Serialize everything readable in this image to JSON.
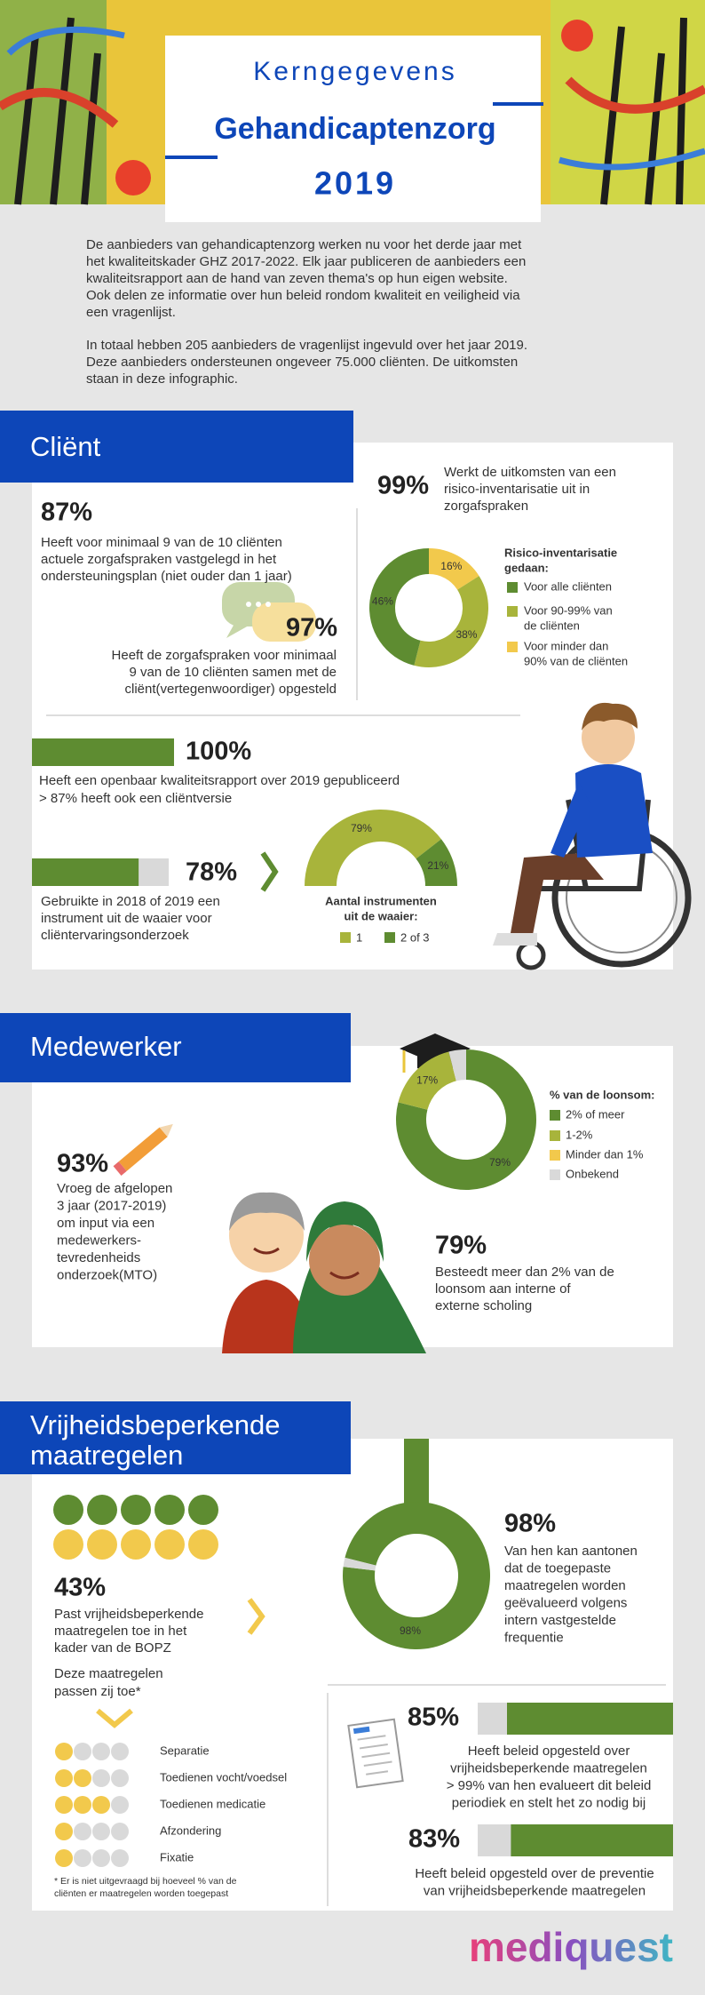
{
  "header": {
    "title": "Kerngegevens",
    "subtitle": "Gehandicaptenzorg",
    "year": "2019"
  },
  "intro": {
    "paragraphs": [
      [
        "De aanbieders van gehandicaptenzorg werken nu voor het derde jaar met",
        "het kwaliteitskader GHZ 2017-2022. Elk jaar publiceren de aanbieders een",
        "kwaliteitsrapport aan de hand van zeven thema's op hun eigen website.",
        "Ook delen ze  informatie over hun beleid rondom kwaliteit en veiligheid via",
        "een vragenlijst."
      ],
      [
        "In totaal hebben 205 aanbieders de vragenlijst ingevuld over het jaar 2019.",
        "Deze aanbieders ondersteunen ongeveer 75.000 cliënten. De uitkomsten",
        "staan in deze infographic."
      ]
    ]
  },
  "client": {
    "heading": "Cliënt",
    "zorgafspraken": {
      "label": "87%",
      "text": [
        "Heeft voor minimaal 9 van de 10 cliënten",
        "actuele zorgafspraken vastgelegd in het",
        "ondersteuningsplan (niet ouder dan 1 jaar)"
      ]
    },
    "samen": {
      "label": "97%",
      "text": [
        "Heeft de zorgafspraken voor minimaal",
        "9 van de 10 cliënten samen met de",
        "cliënt(vertegenwoordiger) opgesteld"
      ]
    },
    "risico": {
      "label": "99%",
      "text": [
        "Werkt de uitkomsten van een",
        "risico-inventarisatie uit in",
        "zorgafspraken"
      ],
      "chart": {
        "type": "donut",
        "title": [
          "Risico-inventarisatie",
          "gedaan:"
        ],
        "categories": [
          [
            "Voor alle cliënten"
          ],
          [
            "Voor 90-99% van",
            "de cliënten"
          ],
          [
            "Voor minder dan",
            "90% van de cliënten"
          ]
        ],
        "values": [
          46,
          38,
          16
        ],
        "value_labels": [
          "46%",
          "38%",
          "16%"
        ],
        "colors": [
          "#5e8c31",
          "#a8b43b",
          "#f2c94c"
        ]
      }
    },
    "rapport": {
      "value": 100,
      "label": "100%",
      "text": [
        "Heeft een openbaar kwaliteitsrapport over 2019 gepubliceerd",
        "> 87% heeft ook een cliëntversie"
      ]
    },
    "waaier": {
      "value": 78,
      "label": "78%",
      "text": [
        "Gebruikte in 2018 of 2019 een",
        "instrument uit de waaier voor",
        "cliëntervaringsonderzoek"
      ],
      "chart": {
        "type": "half-donut",
        "title": [
          "Aantal instrumenten",
          "uit de waaier:"
        ],
        "categories": [
          "1",
          "2 of 3"
        ],
        "values": [
          79,
          21
        ],
        "value_labels": [
          "79%",
          "21%"
        ],
        "colors": [
          "#a8b43b",
          "#5e8c31"
        ]
      }
    }
  },
  "medewerker": {
    "heading": "Medewerker",
    "mto": {
      "label": "93%",
      "text": [
        "Vroeg de afgelopen",
        "3 jaar (2017-2019)",
        "om input via een",
        "medewerkers-",
        "tevredenheids",
        "onderzoek(MTO)"
      ]
    },
    "scholing": {
      "label": "79%",
      "text": [
        "Besteedt meer dan 2% van de",
        "loonsom aan interne of",
        "externe scholing"
      ]
    },
    "chart": {
      "type": "donut",
      "title": "% van de loonsom:",
      "categories": [
        "2% of meer",
        "1-2%",
        "Minder dan 1%",
        "Onbekend"
      ],
      "values": [
        79,
        17,
        0,
        4
      ],
      "value_labels": [
        "79%",
        "17%",
        null,
        null
      ],
      "colors": [
        "#5e8c31",
        "#a8b43b",
        "#f2c94c",
        "#d9d9d9"
      ]
    }
  },
  "vrijheid": {
    "heading": [
      "Vrijheidsbeperkende",
      "maatregelen"
    ],
    "bopz": {
      "value": 43,
      "label": "43%",
      "text": [
        "Past vrijheidsbeperkende",
        "maatregelen toe in het",
        "kader van de BOPZ"
      ]
    },
    "question": [
      "Deze maatregelen",
      "passen zij toe*"
    ],
    "measures": {
      "categories": [
        "Separatie",
        "Toedienen vocht/voedsel",
        "Toedienen medicatie",
        "Afzondering",
        "Fixatie"
      ],
      "values": [
        25,
        50,
        75,
        25,
        25
      ]
    },
    "footnote": [
      "* Er is niet uitgevraagd bij hoeveel % van de",
      "cliënten er maatregelen worden toegepast"
    ],
    "evaluatie": {
      "values": [
        98,
        2
      ],
      "colors": [
        "#5e8c31",
        "#d9d9d9"
      ],
      "chart_label": "98%",
      "label": "98%",
      "text": [
        "Van hen kan aantonen",
        "dat de toegepaste",
        "maatregelen worden",
        "geëvalueerd volgens",
        "intern vastgestelde",
        "frequentie"
      ]
    },
    "beleid": {
      "value": 85,
      "label": "85%",
      "text": [
        "Heeft beleid opgesteld over",
        "vrijheidsbeperkende maatregelen",
        "> 99% van hen evalueert dit beleid",
        "periodiek en stelt het zo nodig bij"
      ]
    },
    "preventie": {
      "value": 83,
      "label": "83%",
      "text": [
        "Heeft beleid opgesteld over de preventie",
        "van vrijheidsbeperkende maatregelen"
      ]
    }
  },
  "logo": "mediquest"
}
